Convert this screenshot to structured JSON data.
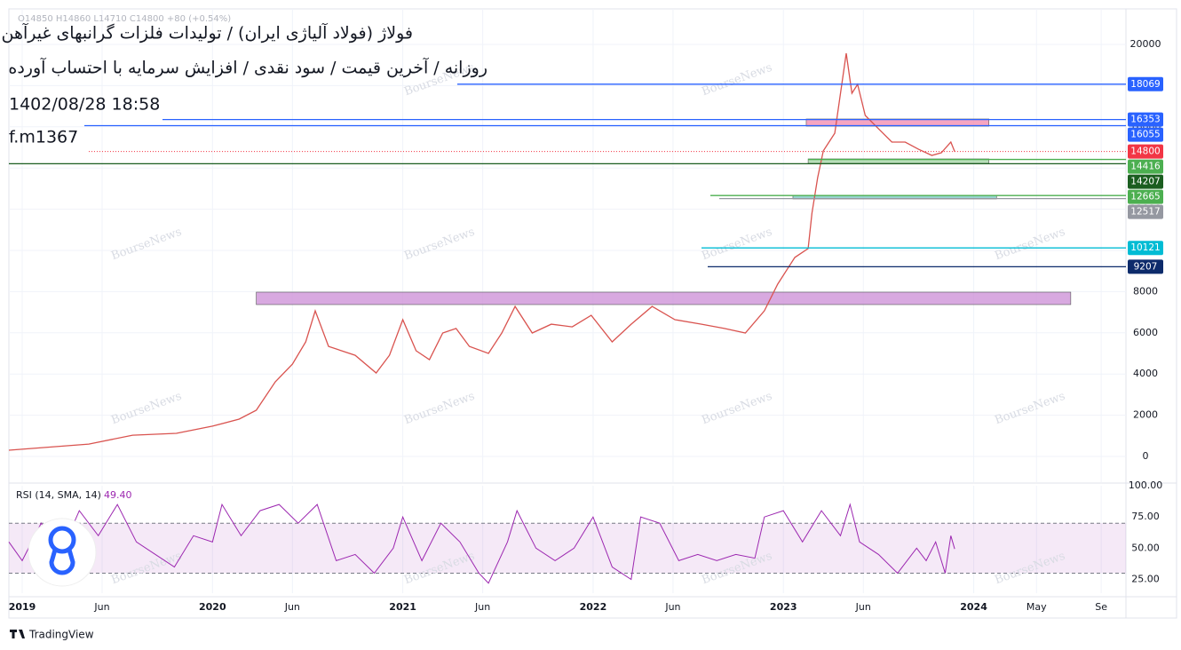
{
  "header": {
    "title": "فولاژ (فولاد آلیاژی ایران) / تولیدات فلزات گرانبهای غیرآهن",
    "subtitle": "روزانه / آخرین قیمت / سود نقدی / افزایش سرمایه با احتساب آورده",
    "datetime": "1402/08/28 18:58",
    "code": "f.m1367",
    "ohlc": "O14850 H14860 L14710 C14800 +80 (+0.54%)"
  },
  "watermark": "BourseNews",
  "footer": "TradingView",
  "chart_data": {
    "type": "line",
    "series": [
      {
        "name": "فولاژ",
        "color": "#d9534f",
        "x": [
          2018.93,
          2019.35,
          2019.58,
          2019.81,
          2020.0,
          2020.14,
          2020.23,
          2020.33,
          2020.42,
          2020.49,
          2020.54,
          2020.61,
          2020.75,
          2020.86,
          2020.93,
          2021.0,
          2021.07,
          2021.14,
          2021.21,
          2021.28,
          2021.35,
          2021.45,
          2021.52,
          2021.59,
          2021.68,
          2021.78,
          2021.89,
          2021.99,
          2022.1,
          2022.2,
          2022.31,
          2022.43,
          2022.57,
          2022.69,
          2022.8,
          2022.9,
          2022.97,
          2023.06,
          2023.13,
          2023.15,
          2023.18,
          2023.21,
          2023.27,
          2023.33,
          2023.36,
          2023.39,
          2023.43,
          2023.5,
          2023.57,
          2023.64,
          2023.71,
          2023.78,
          2023.83,
          2023.88,
          2023.9
        ],
        "values": [
          300,
          600,
          1030,
          1120,
          1470,
          1810,
          2240,
          3620,
          4480,
          5560,
          7070,
          5340,
          4910,
          4050,
          4910,
          6640,
          5130,
          4700,
          5990,
          6210,
          5340,
          5000,
          5990,
          7280,
          5990,
          6420,
          6290,
          6850,
          5560,
          6420,
          7280,
          6640,
          6420,
          6210,
          5990,
          7070,
          8360,
          9660,
          10090,
          11810,
          13530,
          14830,
          15690,
          19570,
          17630,
          18060,
          16550,
          15900,
          15260,
          15260,
          14910,
          14610,
          14740,
          15260,
          14800
        ]
      }
    ],
    "levels": [
      {
        "value": 18069,
        "color": "#2962ff"
      },
      {
        "value": 16353,
        "color": "#2962ff"
      },
      {
        "value": 16055,
        "color": "#2962ff"
      },
      {
        "value": 14800,
        "color": "#f23645"
      },
      {
        "value": 14416,
        "color": "#4caf50"
      },
      {
        "value": 14207,
        "color": "#1b5e20"
      },
      {
        "value": 12665,
        "color": "#4caf50"
      },
      {
        "value": 12517,
        "color": "#9598a1"
      },
      {
        "value": 10121,
        "color": "#00bcd4"
      },
      {
        "value": 9207,
        "color": "#0d2b6b"
      }
    ],
    "zones": [
      {
        "from": 2020.23,
        "to": 2024.51,
        "low": 7371,
        "high": 7974,
        "color": "#ce93d8"
      },
      {
        "from": 2023.12,
        "to": 2024.08,
        "low": 16034,
        "high": 16379,
        "color": "#f48fb1"
      },
      {
        "from": 2023.13,
        "to": 2024.08,
        "low": 14224,
        "high": 14440,
        "color": "#a5d6a7"
      },
      {
        "from": 2023.05,
        "to": 2024.12,
        "low": 12500,
        "high": 12672,
        "color": "#80cbc4"
      }
    ],
    "xlim": [
      2018.93,
      2024.8
    ],
    "ylim": [
      -1250,
      21724
    ],
    "xticks": [
      {
        "value": 2019,
        "label": "2019"
      },
      {
        "value": 2019.42,
        "label": "Jun"
      },
      {
        "value": 2020,
        "label": "2020"
      },
      {
        "value": 2020.42,
        "label": "Jun"
      },
      {
        "value": 2021,
        "label": "2021"
      },
      {
        "value": 2021.42,
        "label": "Jun"
      },
      {
        "value": 2022,
        "label": "2022"
      },
      {
        "value": 2022.42,
        "label": "Jun"
      },
      {
        "value": 2023,
        "label": "2023"
      },
      {
        "value": 2023.42,
        "label": "Jun"
      },
      {
        "value": 2024,
        "label": "2024"
      },
      {
        "value": 2024.33,
        "label": "May"
      },
      {
        "value": 2024.67,
        "label": "Se"
      }
    ],
    "yticks": [
      0,
      2000,
      4000,
      6000,
      8000,
      10000,
      12000,
      14000,
      16000,
      18000,
      20000
    ],
    "grid": true,
    "rsi": {
      "label": "RSI (14, SMA, 14)",
      "last": 49.4,
      "last_label": "49.40",
      "color": "#9c27b0",
      "band": [
        30,
        70
      ],
      "ylim": [
        14,
        100
      ],
      "yticks": [
        {
          "value": 100,
          "label": "100.00"
        },
        {
          "value": 75,
          "label": "75.00"
        },
        {
          "value": 50,
          "label": "50.00"
        },
        {
          "value": 25,
          "label": "25.00"
        }
      ],
      "x": [
        2018.93,
        2019.0,
        2019.1,
        2019.2,
        2019.3,
        2019.4,
        2019.5,
        2019.6,
        2019.7,
        2019.8,
        2019.9,
        2020.0,
        2020.05,
        2020.15,
        2020.25,
        2020.35,
        2020.45,
        2020.55,
        2020.65,
        2020.75,
        2020.85,
        2020.95,
        2021.0,
        2021.1,
        2021.2,
        2021.3,
        2021.4,
        2021.45,
        2021.55,
        2021.6,
        2021.7,
        2021.8,
        2021.9,
        2022.0,
        2022.1,
        2022.2,
        2022.25,
        2022.35,
        2022.45,
        2022.55,
        2022.65,
        2022.75,
        2022.85,
        2022.9,
        2023.0,
        2023.1,
        2023.2,
        2023.3,
        2023.35,
        2023.4,
        2023.5,
        2023.6,
        2023.7,
        2023.75,
        2023.8,
        2023.85,
        2023.88,
        2023.9
      ],
      "values": [
        55,
        40,
        70,
        45,
        80,
        60,
        85,
        55,
        45,
        35,
        60,
        55,
        85,
        60,
        80,
        85,
        70,
        85,
        40,
        45,
        30,
        50,
        75,
        40,
        70,
        55,
        30,
        22,
        55,
        80,
        50,
        40,
        50,
        75,
        35,
        25,
        75,
        70,
        40,
        45,
        40,
        45,
        42,
        75,
        80,
        55,
        80,
        60,
        85,
        55,
        45,
        30,
        50,
        40,
        55,
        30,
        60,
        49.4
      ]
    }
  }
}
